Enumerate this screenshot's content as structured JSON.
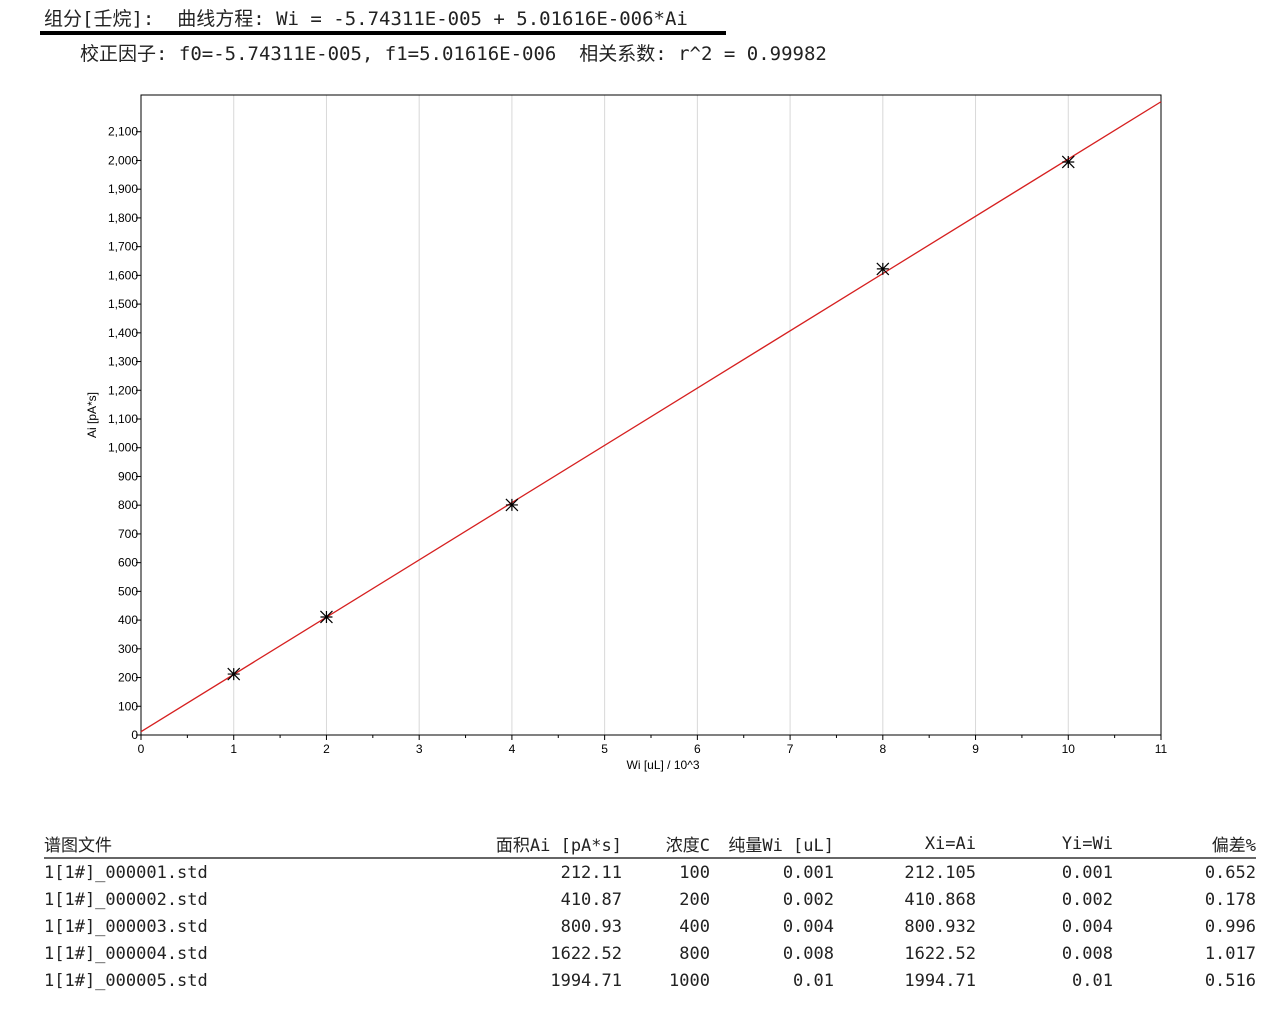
{
  "header": {
    "equation": "组分[壬烷]:  曲线方程: Wi = -5.74311E-005 + 5.01616E-006*Ai",
    "factors": "校正因子: f0=-5.74311E-005, f1=5.01616E-006  相关系数: r^2 = 0.99982"
  },
  "chart_data": {
    "type": "scatter",
    "xlabel": "Wi [uL] / 10^3",
    "ylabel": "Ai [pA*s]",
    "xlim": [
      0,
      11
    ],
    "ylim": [
      0,
      2200
    ],
    "x_ticks": [
      0,
      1,
      2,
      3,
      4,
      5,
      6,
      7,
      8,
      9,
      10,
      11
    ],
    "y_ticks": [
      0,
      100,
      200,
      300,
      400,
      500,
      600,
      700,
      800,
      900,
      1000,
      1100,
      1200,
      1300,
      1400,
      1500,
      1600,
      1700,
      1800,
      1900,
      2000,
      2100
    ],
    "y_tick_labels": [
      "0",
      "100",
      "200",
      "300",
      "400",
      "500",
      "600",
      "700",
      "800",
      "900",
      "1,000",
      "1,100",
      "1,200",
      "1,300",
      "1,400",
      "1,500",
      "1,600",
      "1,700",
      "1,800",
      "1,900",
      "2,000",
      "2,100"
    ],
    "grid": "vertical",
    "points": {
      "x": [
        1,
        2,
        4,
        8,
        10
      ],
      "y": [
        212.11,
        410.87,
        800.93,
        1622.52,
        1994.71
      ],
      "marker": "asterisk",
      "color": "#000000"
    },
    "fit_line": {
      "intercept_wi": -5.74311e-05,
      "slope": 5.01616e-06,
      "color": "#d62020"
    }
  },
  "table": {
    "headers": [
      "谱图文件",
      "面积Ai [pA*s]",
      "浓度C",
      "纯量Wi [uL]",
      "Xi=Ai",
      "Yi=Wi",
      "偏差%"
    ],
    "rows": [
      [
        "1[1#]_000001.std",
        "212.11",
        "100",
        "0.001",
        "212.105",
        "0.001",
        "0.652"
      ],
      [
        "1[1#]_000002.std",
        "410.87",
        "200",
        "0.002",
        "410.868",
        "0.002",
        "0.178"
      ],
      [
        "1[1#]_000003.std",
        "800.93",
        "400",
        "0.004",
        "800.932",
        "0.004",
        "0.996"
      ],
      [
        "1[1#]_000004.std",
        "1622.52",
        "800",
        "0.008",
        "1622.52",
        "0.008",
        "1.017"
      ],
      [
        "1[1#]_000005.std",
        "1994.71",
        "1000",
        "0.01",
        "1994.71",
        "0.01",
        "0.516"
      ]
    ]
  }
}
